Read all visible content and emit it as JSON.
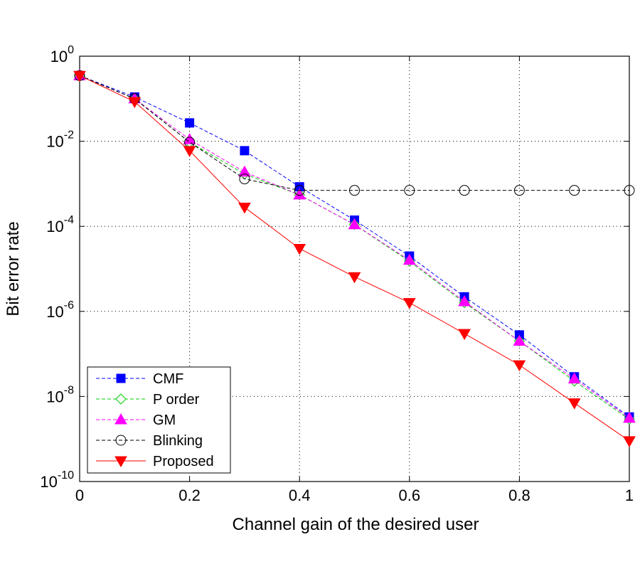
{
  "chart_data": {
    "type": "line",
    "title": "",
    "xlabel": "Channel gain of the desired user",
    "ylabel": "Bit error rate",
    "x": [
      0,
      0.1,
      0.2,
      0.3,
      0.4,
      0.5,
      0.6,
      0.7,
      0.8,
      0.9,
      1
    ],
    "xlim": [
      0,
      1
    ],
    "ylim": [
      1e-10,
      1
    ],
    "yscale": "log",
    "grid": true,
    "legend_position": "bottom-left",
    "x_ticks": [
      "0",
      "0.2",
      "0.4",
      "0.6",
      "0.8",
      "1"
    ],
    "y_ticks": [
      {
        "base": "10",
        "exp": "0",
        "value": 1
      },
      {
        "base": "10",
        "exp": "-2",
        "value": 0.01
      },
      {
        "base": "10",
        "exp": "-4",
        "value": 0.0001
      },
      {
        "base": "10",
        "exp": "-6",
        "value": 1e-06
      },
      {
        "base": "10",
        "exp": "-8",
        "value": 1e-08
      },
      {
        "base": "10",
        "exp": "-10",
        "value": 1e-10
      }
    ],
    "series": [
      {
        "name": "CMF",
        "color": "#0000ff",
        "line": "dashed",
        "marker": "square",
        "values": [
          0.35,
          0.11,
          0.027,
          0.006,
          0.00085,
          0.00014,
          2e-05,
          2.2e-06,
          2.8e-07,
          2.9e-08,
          3.3e-09
        ]
      },
      {
        "name": "P order",
        "color": "#00cc00",
        "line": "dashed",
        "marker": "diamond",
        "values": [
          0.35,
          0.1,
          0.0095,
          0.0017,
          0.00055,
          0.00011,
          1.5e-05,
          1.6e-06,
          2e-07,
          2.3e-08,
          2.9e-09
        ]
      },
      {
        "name": "GM",
        "color": "#ff00ff",
        "line": "dashed",
        "marker": "triangle-up",
        "values": [
          0.35,
          0.1,
          0.011,
          0.0019,
          0.00055,
          0.00011,
          1.6e-05,
          1.7e-06,
          2e-07,
          2.6e-08,
          3.1e-09
        ]
      },
      {
        "name": "Blinking",
        "color": "#000000",
        "line": "dashed",
        "marker": "circle",
        "values": [
          0.35,
          0.1,
          0.0095,
          0.0013,
          0.0007,
          0.0007,
          0.0007,
          0.0007,
          0.0007,
          0.0007,
          0.0007
        ]
      },
      {
        "name": "Proposed",
        "color": "#ff0000",
        "line": "solid",
        "marker": "triangle-down",
        "values": [
          0.35,
          0.085,
          0.006,
          0.00028,
          3e-05,
          6.5e-06,
          1.6e-06,
          3e-07,
          5.5e-08,
          7e-09,
          9e-10
        ]
      }
    ]
  }
}
